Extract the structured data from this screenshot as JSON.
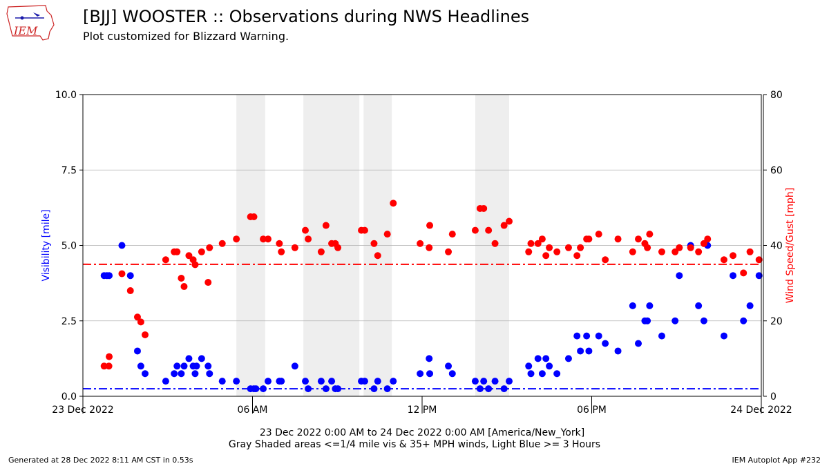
{
  "header": {
    "title": "[BJJ] WOOSTER :: Observations during NWS Headlines",
    "subtitle": "Plot customized for Blizzard Warning.",
    "logo_text": "IEM"
  },
  "footer": {
    "generated": "Generated at 28 Dec 2022 8:11 AM CST in 0.53s",
    "app": "IEM Autoplot App #232"
  },
  "chart_data": {
    "type": "scatter",
    "x_caption_1": "23 Dec 2022 0:00 AM to 24 Dec 2022 0:00 AM [America/New_York]",
    "x_caption_2": "Gray Shaded areas <=1/4 mile vis & 35+ MPH winds, Light Blue >= 3 Hours",
    "x_ticks": [
      {
        "hour": 0,
        "label": "23 Dec 2022"
      },
      {
        "hour": 6,
        "label": "06 AM"
      },
      {
        "hour": 12,
        "label": "12 PM"
      },
      {
        "hour": 18,
        "label": "06 PM"
      },
      {
        "hour": 24,
        "label": "24 Dec 2022"
      }
    ],
    "xlim_hours": [
      0,
      24
    ],
    "left_axis": {
      "label": "Visibility [mile]",
      "color": "#0000ff",
      "ylim": [
        0,
        10
      ],
      "ticks": [
        "0.0",
        "2.5",
        "5.0",
        "7.5",
        "10.0"
      ],
      "tick_values": [
        0,
        2.5,
        5,
        7.5,
        10
      ],
      "threshold": 0.25
    },
    "right_axis": {
      "label": "Wind Speed/Gust [mph]",
      "color": "#ff0000",
      "ylim": [
        0,
        80
      ],
      "ticks": [
        "0",
        "20",
        "40",
        "60",
        "80"
      ],
      "tick_values": [
        0,
        20,
        40,
        60,
        80
      ],
      "threshold": 35
    },
    "grid": true,
    "shaded_periods": [
      {
        "start": 5.43,
        "end": 6.45
      },
      {
        "start": 7.8,
        "end": 9.78
      },
      {
        "start": 9.93,
        "end": 10.93
      },
      {
        "start": 13.88,
        "end": 15.08
      }
    ],
    "visibility": [
      [
        0.75,
        4.0
      ],
      [
        0.85,
        4.0
      ],
      [
        0.93,
        4.0
      ],
      [
        1.38,
        5.0
      ],
      [
        1.68,
        4.0
      ],
      [
        1.93,
        1.5
      ],
      [
        2.05,
        1.0
      ],
      [
        2.2,
        0.75
      ],
      [
        2.93,
        0.5
      ],
      [
        3.23,
        0.75
      ],
      [
        3.33,
        1.0
      ],
      [
        3.48,
        0.75
      ],
      [
        3.58,
        1.0
      ],
      [
        3.75,
        1.25
      ],
      [
        3.9,
        1.0
      ],
      [
        3.97,
        0.75
      ],
      [
        4.02,
        1.0
      ],
      [
        4.2,
        1.25
      ],
      [
        4.43,
        1.0
      ],
      [
        4.48,
        0.75
      ],
      [
        4.93,
        0.5
      ],
      [
        5.43,
        0.5
      ],
      [
        5.93,
        0.25
      ],
      [
        6.05,
        0.25
      ],
      [
        6.12,
        0.25
      ],
      [
        6.38,
        0.25
      ],
      [
        6.55,
        0.5
      ],
      [
        6.95,
        0.5
      ],
      [
        7.02,
        0.5
      ],
      [
        7.5,
        1.0
      ],
      [
        7.87,
        0.5
      ],
      [
        7.97,
        0.25
      ],
      [
        8.43,
        0.5
      ],
      [
        8.6,
        0.25
      ],
      [
        8.8,
        0.5
      ],
      [
        8.93,
        0.25
      ],
      [
        9.02,
        0.25
      ],
      [
        9.85,
        0.5
      ],
      [
        9.97,
        0.5
      ],
      [
        10.3,
        0.25
      ],
      [
        10.43,
        0.5
      ],
      [
        10.77,
        0.25
      ],
      [
        10.98,
        0.5
      ],
      [
        11.93,
        0.75
      ],
      [
        12.25,
        1.25
      ],
      [
        12.27,
        0.75
      ],
      [
        12.93,
        1.0
      ],
      [
        13.07,
        0.75
      ],
      [
        13.88,
        0.5
      ],
      [
        14.05,
        0.25
      ],
      [
        14.18,
        0.5
      ],
      [
        14.35,
        0.25
      ],
      [
        14.58,
        0.5
      ],
      [
        14.9,
        0.25
      ],
      [
        15.08,
        0.5
      ],
      [
        15.77,
        1.0
      ],
      [
        15.85,
        0.75
      ],
      [
        16.1,
        1.25
      ],
      [
        16.25,
        0.75
      ],
      [
        16.38,
        1.25
      ],
      [
        16.5,
        1.0
      ],
      [
        16.77,
        0.75
      ],
      [
        17.18,
        1.25
      ],
      [
        17.48,
        2.0
      ],
      [
        17.6,
        1.5
      ],
      [
        17.82,
        2.0
      ],
      [
        17.9,
        1.5
      ],
      [
        18.25,
        2.0
      ],
      [
        18.48,
        1.75
      ],
      [
        18.93,
        1.5
      ],
      [
        19.45,
        3.0
      ],
      [
        19.65,
        1.75
      ],
      [
        19.88,
        2.5
      ],
      [
        19.97,
        2.5
      ],
      [
        20.05,
        3.0
      ],
      [
        20.48,
        2.0
      ],
      [
        20.95,
        2.5
      ],
      [
        21.1,
        4.0
      ],
      [
        21.5,
        5.0
      ],
      [
        21.78,
        3.0
      ],
      [
        21.97,
        2.5
      ],
      [
        22.1,
        5.0
      ],
      [
        22.68,
        2.0
      ],
      [
        23.0,
        4.0
      ],
      [
        23.37,
        2.5
      ],
      [
        23.6,
        3.0
      ],
      [
        23.92,
        4.0
      ]
    ],
    "wind": [
      [
        0.75,
        8
      ],
      [
        0.92,
        8
      ],
      [
        0.93,
        10.5
      ],
      [
        1.38,
        32.5
      ],
      [
        1.68,
        28
      ],
      [
        1.93,
        21
      ],
      [
        2.05,
        19.7
      ],
      [
        2.2,
        16.3
      ],
      [
        2.93,
        36.2
      ],
      [
        3.23,
        38.3
      ],
      [
        3.33,
        38.3
      ],
      [
        3.48,
        31.3
      ],
      [
        3.58,
        29.1
      ],
      [
        3.75,
        37.3
      ],
      [
        3.9,
        36.2
      ],
      [
        3.97,
        34.9
      ],
      [
        4.2,
        38.3
      ],
      [
        4.43,
        30.2
      ],
      [
        4.48,
        39.4
      ],
      [
        4.93,
        40.5
      ],
      [
        5.43,
        41.7
      ],
      [
        5.93,
        47.6
      ],
      [
        6.05,
        47.6
      ],
      [
        6.38,
        41.7
      ],
      [
        6.55,
        41.7
      ],
      [
        6.95,
        40.5
      ],
      [
        7.02,
        38.3
      ],
      [
        7.5,
        39.4
      ],
      [
        7.87,
        44.0
      ],
      [
        7.97,
        41.7
      ],
      [
        8.43,
        38.3
      ],
      [
        8.6,
        45.3
      ],
      [
        8.8,
        40.5
      ],
      [
        8.93,
        40.5
      ],
      [
        9.02,
        39.4
      ],
      [
        9.85,
        44.0
      ],
      [
        9.97,
        44.0
      ],
      [
        10.3,
        40.5
      ],
      [
        10.43,
        37.3
      ],
      [
        10.77,
        43.0
      ],
      [
        10.98,
        51.2
      ],
      [
        11.93,
        40.5
      ],
      [
        12.25,
        39.4
      ],
      [
        12.27,
        45.3
      ],
      [
        12.93,
        38.3
      ],
      [
        13.07,
        43.0
      ],
      [
        13.88,
        44.0
      ],
      [
        14.05,
        49.8
      ],
      [
        14.18,
        49.8
      ],
      [
        14.35,
        44.0
      ],
      [
        14.58,
        40.5
      ],
      [
        14.9,
        45.3
      ],
      [
        15.08,
        46.4
      ],
      [
        15.77,
        38.3
      ],
      [
        15.85,
        40.5
      ],
      [
        16.1,
        40.5
      ],
      [
        16.25,
        41.7
      ],
      [
        16.38,
        37.3
      ],
      [
        16.5,
        39.4
      ],
      [
        16.77,
        38.3
      ],
      [
        17.18,
        39.4
      ],
      [
        17.48,
        37.3
      ],
      [
        17.6,
        39.4
      ],
      [
        17.82,
        41.7
      ],
      [
        17.9,
        41.7
      ],
      [
        18.25,
        43.0
      ],
      [
        18.48,
        36.2
      ],
      [
        18.93,
        41.7
      ],
      [
        19.45,
        38.3
      ],
      [
        19.65,
        41.7
      ],
      [
        19.88,
        40.5
      ],
      [
        19.97,
        39.4
      ],
      [
        20.05,
        43.0
      ],
      [
        20.48,
        38.3
      ],
      [
        20.95,
        38.3
      ],
      [
        21.1,
        39.4
      ],
      [
        21.5,
        39.4
      ],
      [
        21.78,
        38.3
      ],
      [
        21.97,
        40.5
      ],
      [
        22.1,
        41.7
      ],
      [
        22.68,
        36.2
      ],
      [
        23.0,
        37.3
      ],
      [
        23.37,
        32.7
      ],
      [
        23.6,
        38.3
      ],
      [
        23.92,
        36.2
      ]
    ]
  }
}
